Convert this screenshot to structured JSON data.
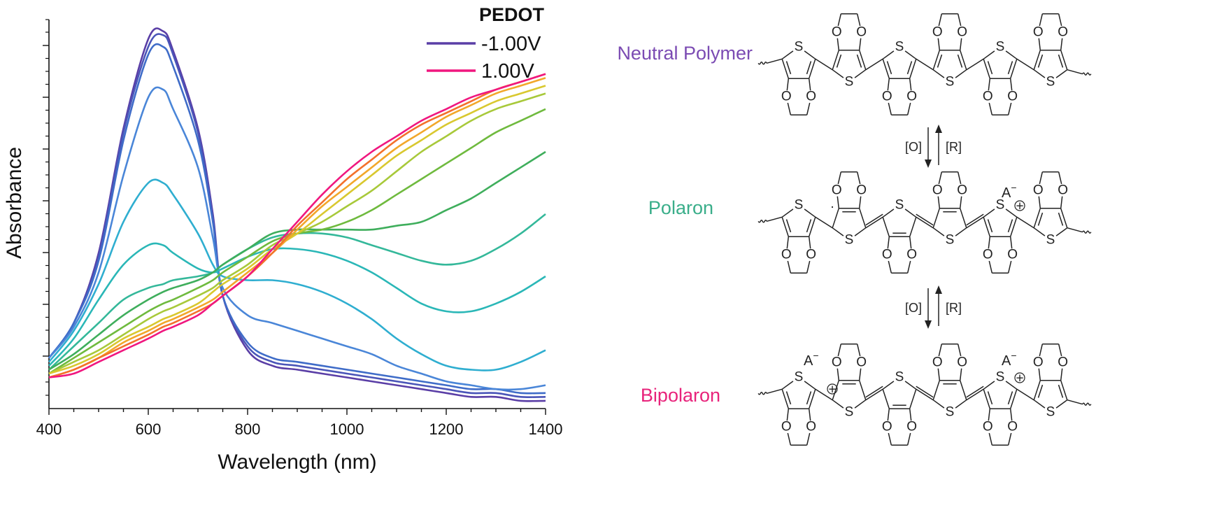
{
  "chart_data": {
    "type": "line",
    "title": "",
    "xlabel": "Wavelength (nm)",
    "ylabel": "Absorbance",
    "xlim": [
      400,
      1400
    ],
    "ylim": [
      0,
      1
    ],
    "x_ticks": [
      "400",
      "600",
      "800",
      "1000",
      "1200",
      "1400"
    ],
    "y_tick_labels_shown": false,
    "legend": {
      "title": "PEDOT",
      "placement": "top-right",
      "entries": [
        {
          "label": "-1.00V",
          "color": "#5a3ea6"
        },
        {
          "label": "1.00V",
          "color": "#f0177f"
        }
      ]
    },
    "x": [
      400,
      450,
      500,
      550,
      600,
      630,
      650,
      700,
      730,
      750,
      800,
      850,
      900,
      950,
      1000,
      1050,
      1100,
      1150,
      1200,
      1250,
      1300,
      1350,
      1400
    ],
    "series": [
      {
        "color": "#5a3ea6",
        "values": [
          0.13,
          0.22,
          0.4,
          0.72,
          0.95,
          0.97,
          0.92,
          0.72,
          0.5,
          0.29,
          0.15,
          0.11,
          0.1,
          0.09,
          0.08,
          0.07,
          0.06,
          0.05,
          0.04,
          0.03,
          0.03,
          0.02,
          0.02
        ]
      },
      {
        "color": "#4a55b8",
        "values": [
          0.13,
          0.22,
          0.39,
          0.71,
          0.93,
          0.96,
          0.91,
          0.71,
          0.49,
          0.29,
          0.16,
          0.12,
          0.11,
          0.1,
          0.09,
          0.08,
          0.07,
          0.06,
          0.05,
          0.04,
          0.04,
          0.03,
          0.03
        ]
      },
      {
        "color": "#3f6cc8",
        "values": [
          0.13,
          0.22,
          0.38,
          0.69,
          0.91,
          0.93,
          0.88,
          0.69,
          0.48,
          0.29,
          0.17,
          0.13,
          0.12,
          0.11,
          0.1,
          0.09,
          0.08,
          0.07,
          0.06,
          0.05,
          0.05,
          0.04,
          0.04
        ]
      },
      {
        "color": "#4a86d8",
        "values": [
          0.13,
          0.21,
          0.35,
          0.6,
          0.8,
          0.82,
          0.77,
          0.62,
          0.44,
          0.31,
          0.24,
          0.22,
          0.2,
          0.18,
          0.16,
          0.14,
          0.11,
          0.09,
          0.07,
          0.06,
          0.05,
          0.05,
          0.06
        ]
      },
      {
        "color": "#2faed0",
        "values": [
          0.12,
          0.2,
          0.32,
          0.48,
          0.58,
          0.58,
          0.55,
          0.45,
          0.37,
          0.34,
          0.33,
          0.33,
          0.32,
          0.3,
          0.27,
          0.23,
          0.18,
          0.14,
          0.11,
          0.1,
          0.1,
          0.12,
          0.15
        ]
      },
      {
        "color": "#2ab7b7",
        "values": [
          0.11,
          0.18,
          0.28,
          0.37,
          0.42,
          0.42,
          0.4,
          0.36,
          0.35,
          0.36,
          0.39,
          0.41,
          0.41,
          0.4,
          0.38,
          0.35,
          0.31,
          0.27,
          0.25,
          0.25,
          0.27,
          0.3,
          0.34
        ]
      },
      {
        "color": "#34b89a",
        "values": [
          0.1,
          0.16,
          0.22,
          0.28,
          0.31,
          0.32,
          0.33,
          0.34,
          0.35,
          0.37,
          0.41,
          0.44,
          0.45,
          0.45,
          0.44,
          0.42,
          0.4,
          0.38,
          0.37,
          0.38,
          0.41,
          0.45,
          0.5
        ]
      },
      {
        "color": "#3fae5c",
        "values": [
          0.1,
          0.14,
          0.19,
          0.24,
          0.28,
          0.3,
          0.31,
          0.33,
          0.35,
          0.37,
          0.41,
          0.45,
          0.46,
          0.46,
          0.46,
          0.46,
          0.47,
          0.48,
          0.51,
          0.54,
          0.58,
          0.62,
          0.66
        ]
      },
      {
        "color": "#6fba3e",
        "values": [
          0.09,
          0.13,
          0.17,
          0.21,
          0.25,
          0.27,
          0.28,
          0.31,
          0.33,
          0.35,
          0.39,
          0.43,
          0.45,
          0.46,
          0.48,
          0.51,
          0.55,
          0.59,
          0.63,
          0.67,
          0.71,
          0.74,
          0.77
        ]
      },
      {
        "color": "#a8c93a",
        "values": [
          0.09,
          0.12,
          0.15,
          0.19,
          0.23,
          0.25,
          0.26,
          0.29,
          0.31,
          0.33,
          0.37,
          0.42,
          0.45,
          0.48,
          0.52,
          0.56,
          0.61,
          0.66,
          0.7,
          0.74,
          0.77,
          0.79,
          0.81
        ]
      },
      {
        "color": "#d9c82f",
        "values": [
          0.09,
          0.11,
          0.14,
          0.18,
          0.21,
          0.23,
          0.24,
          0.27,
          0.3,
          0.32,
          0.36,
          0.41,
          0.45,
          0.5,
          0.55,
          0.6,
          0.65,
          0.69,
          0.73,
          0.76,
          0.79,
          0.81,
          0.83
        ]
      },
      {
        "color": "#f2a72a",
        "values": [
          0.08,
          0.1,
          0.13,
          0.17,
          0.2,
          0.22,
          0.23,
          0.26,
          0.28,
          0.3,
          0.35,
          0.4,
          0.46,
          0.52,
          0.57,
          0.62,
          0.67,
          0.71,
          0.75,
          0.78,
          0.81,
          0.83,
          0.85
        ]
      },
      {
        "color": "#f3712b",
        "values": [
          0.08,
          0.1,
          0.13,
          0.16,
          0.19,
          0.21,
          0.22,
          0.25,
          0.27,
          0.29,
          0.34,
          0.4,
          0.47,
          0.53,
          0.59,
          0.64,
          0.69,
          0.73,
          0.76,
          0.79,
          0.82,
          0.84,
          0.86
        ]
      },
      {
        "color": "#f0177f",
        "values": [
          0.08,
          0.09,
          0.12,
          0.15,
          0.18,
          0.2,
          0.21,
          0.24,
          0.27,
          0.29,
          0.34,
          0.41,
          0.48,
          0.55,
          0.61,
          0.66,
          0.7,
          0.74,
          0.77,
          0.8,
          0.82,
          0.84,
          0.86
        ]
      }
    ]
  },
  "scheme": {
    "states": [
      {
        "label": "Neutral Polymer",
        "color": "#7b4bb3"
      },
      {
        "label": "Polaron",
        "color": "#3aae8a"
      },
      {
        "label": "Bipolaron",
        "color": "#e8237b"
      }
    ],
    "oxidation_label": "[O]",
    "reduction_label": "[R]",
    "sulfur": "S",
    "oxygen": "O",
    "anion": "A",
    "anion_charge": "−",
    "plus": "+",
    "radical": "·"
  }
}
